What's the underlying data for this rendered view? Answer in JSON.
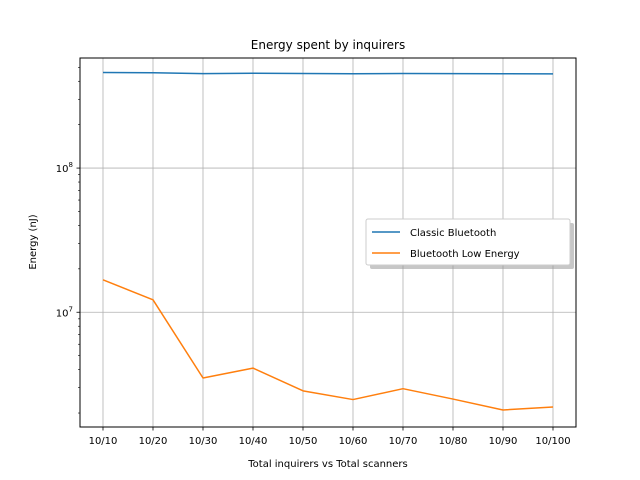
{
  "chart_data": {
    "type": "line",
    "title": "Energy spent by inquirers",
    "xlabel": "Total inquirers vs Total scanners",
    "ylabel": "Energy (nJ)",
    "categories": [
      "10/10",
      "10/20",
      "10/30",
      "10/40",
      "10/50",
      "10/60",
      "10/70",
      "10/80",
      "10/90",
      "10/100"
    ],
    "y_scale": "log",
    "ylim": [
      1600000,
      580000000
    ],
    "y_ticks": [
      {
        "value": 10000000,
        "base": "10",
        "exp": "7"
      },
      {
        "value": 100000000,
        "base": "10",
        "exp": "8"
      }
    ],
    "grid": true,
    "legend_position": "center-right",
    "series": [
      {
        "name": "Classic Bluetooth",
        "color": "#1f77b4",
        "values": [
          460000000,
          458000000,
          452000000,
          455000000,
          453000000,
          451000000,
          453000000,
          452000000,
          451000000,
          450000000
        ]
      },
      {
        "name": "Bluetooth Low Energy",
        "color": "#ff7f0e",
        "values": [
          16800000,
          12200000,
          3500000,
          4100000,
          2850000,
          2480000,
          2950000,
          2500000,
          2100000,
          2200000
        ]
      }
    ]
  }
}
